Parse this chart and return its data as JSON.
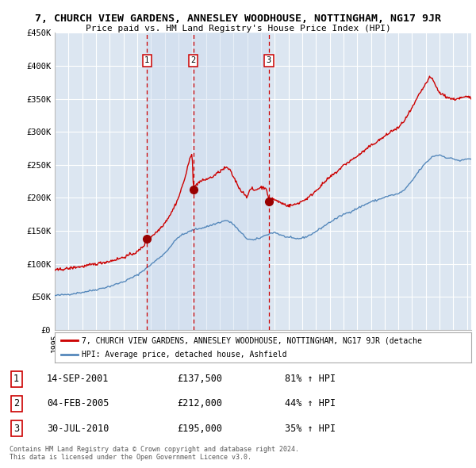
{
  "title": "7, CHURCH VIEW GARDENS, ANNESLEY WOODHOUSE, NOTTINGHAM, NG17 9JR",
  "subtitle": "Price paid vs. HM Land Registry's House Price Index (HPI)",
  "background_color": "#ffffff",
  "plot_bg_color": "#dce6f1",
  "grid_color": "#ffffff",
  "ylim": [
    0,
    450000
  ],
  "yticks": [
    0,
    50000,
    100000,
    150000,
    200000,
    250000,
    300000,
    350000,
    400000,
    450000
  ],
  "ytick_labels": [
    "£0",
    "£50K",
    "£100K",
    "£150K",
    "£200K",
    "£250K",
    "£300K",
    "£350K",
    "£400K",
    "£450K"
  ],
  "sale_prices": [
    137500,
    212000,
    195000
  ],
  "sale_labels": [
    "1",
    "2",
    "3"
  ],
  "red_line_color": "#cc0000",
  "blue_line_color": "#5588bb",
  "sale_marker_color": "#990000",
  "dashed_line_color": "#cc0000",
  "shade_color": "#c8d8ee",
  "legend_red_label": "7, CHURCH VIEW GARDENS, ANNESLEY WOODHOUSE, NOTTINGHAM, NG17 9JR (detache",
  "legend_blue_label": "HPI: Average price, detached house, Ashfield",
  "table_data": [
    {
      "num": "1",
      "date": "14-SEP-2001",
      "price": "£137,500",
      "change": "81% ↑ HPI"
    },
    {
      "num": "2",
      "date": "04-FEB-2005",
      "price": "£212,000",
      "change": "44% ↑ HPI"
    },
    {
      "num": "3",
      "date": "30-JUL-2010",
      "price": "£195,000",
      "change": "35% ↑ HPI"
    }
  ],
  "footnote": "Contains HM Land Registry data © Crown copyright and database right 2024.\nThis data is licensed under the Open Government Licence v3.0.",
  "xstart": 1995.0,
  "xend": 2025.3,
  "sale1_x": 2001.711,
  "sale2_x": 2005.086,
  "sale3_x": 2010.579
}
